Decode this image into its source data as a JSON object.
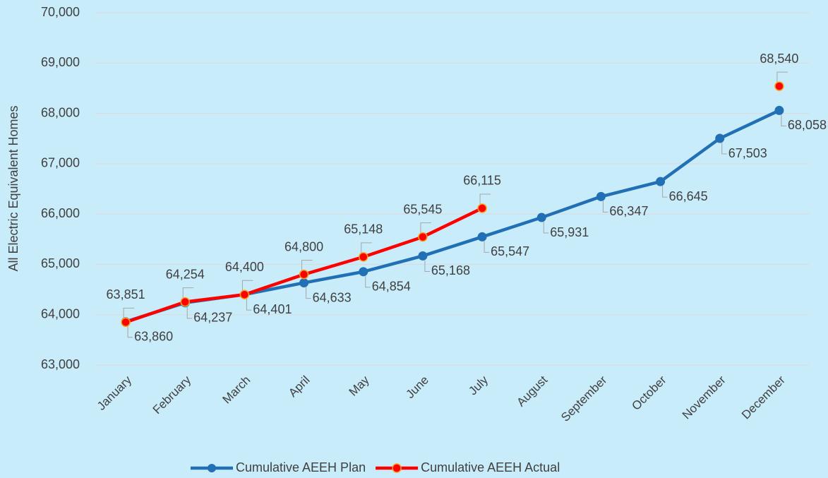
{
  "chart_data": {
    "type": "line",
    "y_label": "All Electric Equivalent Homes",
    "categories": [
      "January",
      "February",
      "March",
      "April",
      "May",
      "June",
      "July",
      "August",
      "September",
      "October",
      "November",
      "December"
    ],
    "series": [
      {
        "name": "Cumulative AEEH Plan",
        "color": "#2170b5",
        "values": [
          63860,
          64237,
          64401,
          64633,
          64854,
          65168,
          65547,
          65931,
          66347,
          66645,
          67503,
          68058
        ],
        "value_labels": [
          "63,860",
          "64,237",
          "64,401",
          "64,633",
          "64,854",
          "65,168",
          "65,547",
          "65,931",
          "66,347",
          "66,645",
          "67,503",
          "68,058"
        ]
      },
      {
        "name": "Cumulative AEEH Actual",
        "color": "#ff0000",
        "values": [
          63851,
          64254,
          64400,
          64800,
          65148,
          65545,
          66115,
          null,
          null,
          null,
          null,
          68540
        ],
        "value_labels": [
          "63,851",
          "64,254",
          "64,400",
          "64,800",
          "65,148",
          "65,545",
          "66,115",
          null,
          null,
          null,
          null,
          "68,540"
        ]
      }
    ],
    "ylim": [
      63000,
      70000
    ],
    "yticks": [
      {
        "value": 63000,
        "label": "63,000"
      },
      {
        "value": 64000,
        "label": "64,000"
      },
      {
        "value": 65000,
        "label": "65,000"
      },
      {
        "value": 66000,
        "label": "66,000"
      },
      {
        "value": 67000,
        "label": "67,000"
      },
      {
        "value": 68000,
        "label": "68,000"
      },
      {
        "value": 69000,
        "label": "69,000"
      },
      {
        "value": 70000,
        "label": "70,000"
      }
    ],
    "grid": true,
    "legend": "bottom"
  }
}
